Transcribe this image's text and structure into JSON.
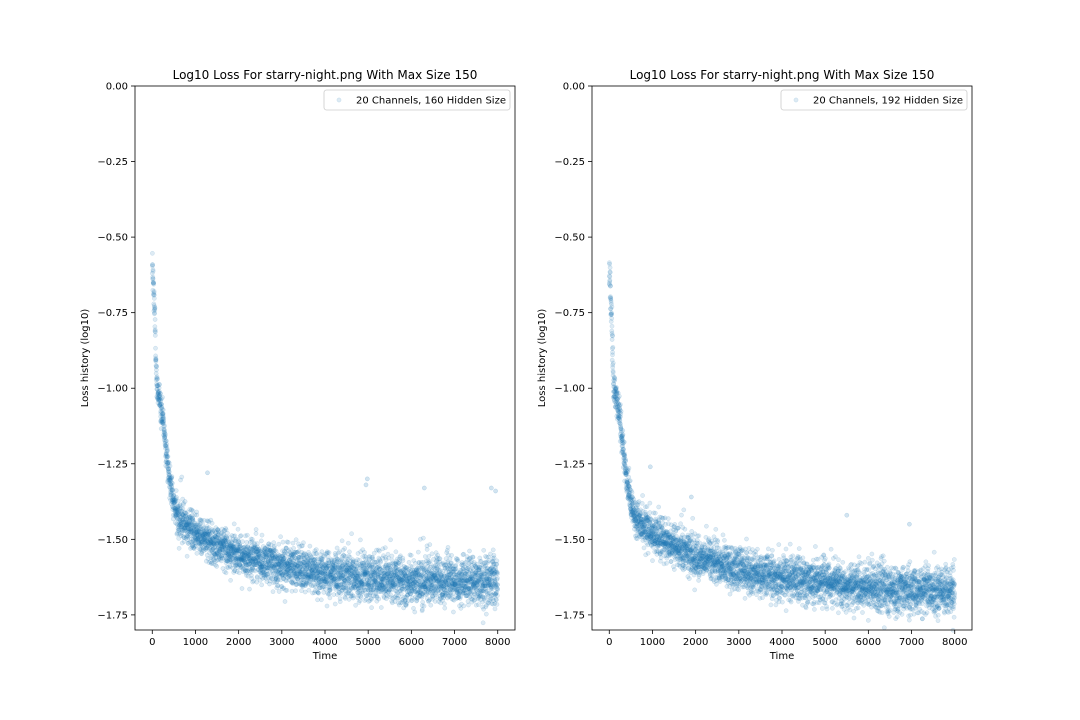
{
  "chart_data": [
    {
      "type": "scatter",
      "title": "Log10 Loss For starry-night.png With Max Size 150",
      "xlabel": "Time",
      "ylabel": "Loss history (log10)",
      "xlim": [
        -400,
        8400
      ],
      "ylim": [
        -1.8,
        0.0
      ],
      "xticks": [
        "0",
        "1000",
        "2000",
        "3000",
        "4000",
        "5000",
        "6000",
        "7000",
        "8000"
      ],
      "yticks": [
        "0.00",
        "−0.25",
        "−0.50",
        "−0.75",
        "−1.00",
        "−1.25",
        "−1.50",
        "−1.75"
      ],
      "legend": "top-right",
      "grid": false,
      "color": "#1f77b4",
      "series": [
        {
          "name": "20 Channels, 160 Hidden Size",
          "trend": [
            [
              0,
              -0.6
            ],
            [
              50,
              -0.72
            ],
            [
              100,
              -1.0
            ],
            [
              150,
              -1.02
            ],
            [
              200,
              -1.06
            ],
            [
              250,
              -1.1
            ],
            [
              300,
              -1.17
            ],
            [
              350,
              -1.24
            ],
            [
              400,
              -1.3
            ],
            [
              500,
              -1.38
            ],
            [
              600,
              -1.43
            ],
            [
              800,
              -1.46
            ],
            [
              1000,
              -1.48
            ],
            [
              1500,
              -1.52
            ],
            [
              2000,
              -1.55
            ],
            [
              3000,
              -1.59
            ],
            [
              4000,
              -1.61
            ],
            [
              5000,
              -1.63
            ],
            [
              6000,
              -1.64
            ],
            [
              7000,
              -1.64
            ],
            [
              8000,
              -1.64
            ]
          ],
          "outliers": [
            [
              4980,
              -1.3
            ],
            [
              4950,
              -1.32
            ],
            [
              6300,
              -1.33
            ],
            [
              7850,
              -1.33
            ],
            [
              7950,
              -1.34
            ],
            [
              1280,
              -1.28
            ]
          ]
        }
      ]
    },
    {
      "type": "scatter",
      "title": "Log10 Loss For starry-night.png With Max Size 150",
      "xlabel": "Time",
      "ylabel": "Loss history (log10)",
      "xlim": [
        -400,
        8400
      ],
      "ylim": [
        -1.8,
        0.0
      ],
      "xticks": [
        "0",
        "1000",
        "2000",
        "3000",
        "4000",
        "5000",
        "6000",
        "7000",
        "8000"
      ],
      "yticks": [
        "0.00",
        "−0.25",
        "−0.50",
        "−0.75",
        "−1.00",
        "−1.25",
        "−1.50",
        "−1.75"
      ],
      "legend": "top-right",
      "grid": false,
      "color": "#1f77b4",
      "series": [
        {
          "name": "20 Channels, 192 Hidden Size",
          "trend": [
            [
              0,
              -0.6
            ],
            [
              50,
              -0.75
            ],
            [
              100,
              -1.0
            ],
            [
              150,
              -1.02
            ],
            [
              200,
              -1.05
            ],
            [
              250,
              -1.1
            ],
            [
              300,
              -1.17
            ],
            [
              350,
              -1.24
            ],
            [
              400,
              -1.3
            ],
            [
              500,
              -1.38
            ],
            [
              600,
              -1.43
            ],
            [
              800,
              -1.46
            ],
            [
              1000,
              -1.48
            ],
            [
              1500,
              -1.52
            ],
            [
              2000,
              -1.56
            ],
            [
              3000,
              -1.6
            ],
            [
              4000,
              -1.63
            ],
            [
              5000,
              -1.64
            ],
            [
              6000,
              -1.66
            ],
            [
              7000,
              -1.67
            ],
            [
              8000,
              -1.67
            ]
          ],
          "outliers": [
            [
              5500,
              -1.42
            ],
            [
              6950,
              -1.45
            ],
            [
              950,
              -1.26
            ],
            [
              1900,
              -1.36
            ]
          ]
        }
      ]
    }
  ]
}
